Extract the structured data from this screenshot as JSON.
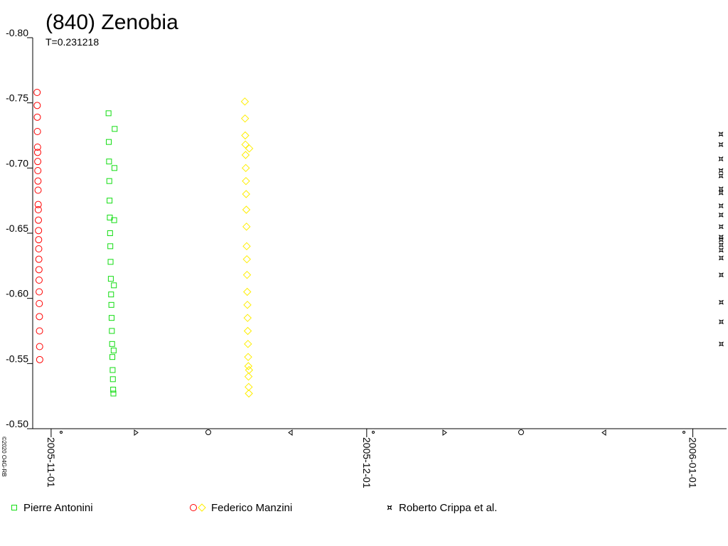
{
  "chart_data": {
    "type": "scatter",
    "title": "(840) Zenobia",
    "subtitle": "T=0.231218",
    "copyright": "©2020 O4G-RB",
    "xlim": [
      "2005-10-30 06:00",
      "2006-01-04 05:00"
    ],
    "xticks": [
      "2005-11-01",
      "2005-12-01",
      "2006-01-01"
    ],
    "ylim": [
      -0.5,
      -0.8
    ],
    "yticks": [
      {
        "value": -0.8,
        "label": "-0.80"
      },
      -0.75,
      {
        "value": -0.7,
        "label": "-0.70"
      },
      -0.65,
      {
        "value": -0.6,
        "label": "-0.60"
      },
      -0.55,
      {
        "value": -0.5,
        "label": "-0.50"
      }
    ],
    "series": [
      {
        "name": "Pierre Antonini",
        "color": "#11dd11",
        "marker": "square",
        "x": [
          "2005-11-06 11:00",
          "2005-11-06 11:35",
          "2005-11-06 12:10",
          "2005-11-06 12:45",
          "2005-11-06 13:20",
          "2005-11-06 13:55",
          "2005-11-06 14:30",
          "2005-11-06 15:05",
          "2005-11-06 15:40",
          "2005-11-06 16:15",
          "2005-11-06 16:50",
          "2005-11-06 17:25",
          "2005-11-06 18:00",
          "2005-11-06 18:35",
          "2005-11-06 19:10",
          "2005-11-06 19:45",
          "2005-11-06 20:20",
          "2005-11-06 20:55",
          "2005-11-06 21:30",
          "2005-11-06 22:05",
          "2005-11-06 22:40",
          "2005-11-06 23:15",
          "2005-11-06 23:50",
          "2005-11-07 00:25",
          "2005-11-07 01:00"
        ],
        "values": [
          -0.742,
          -0.72,
          -0.705,
          -0.69,
          -0.675,
          -0.662,
          -0.65,
          -0.64,
          -0.628,
          -0.615,
          -0.603,
          -0.595,
          -0.585,
          -0.575,
          -0.565,
          -0.555,
          -0.545,
          -0.538,
          -0.53,
          -0.527,
          -0.56,
          -0.61,
          -0.66,
          -0.7,
          -0.73
        ]
      },
      {
        "name": "Federico Manzini",
        "color": "#ff0000",
        "marker": "circle",
        "x": [
          "2005-10-30 16:00",
          "2005-10-30 16:15",
          "2005-10-30 16:30",
          "2005-10-30 16:45",
          "2005-10-30 17:00",
          "2005-10-30 17:15",
          "2005-10-30 17:30",
          "2005-10-30 17:45",
          "2005-10-30 18:00",
          "2005-10-30 18:15",
          "2005-10-30 18:30",
          "2005-10-30 18:45",
          "2005-10-30 19:00",
          "2005-10-30 19:15",
          "2005-10-30 19:30",
          "2005-10-30 19:45",
          "2005-10-30 20:00",
          "2005-10-30 20:15",
          "2005-10-30 20:30",
          "2005-10-30 20:45",
          "2005-10-30 21:00",
          "2005-10-30 21:15",
          "2005-10-30 21:30",
          "2005-10-30 21:45",
          "2005-10-30 22:00"
        ],
        "values": [
          -0.758,
          -0.748,
          -0.739,
          -0.728,
          -0.716,
          -0.712,
          -0.705,
          -0.698,
          -0.69,
          -0.683,
          -0.672,
          -0.668,
          -0.66,
          -0.652,
          -0.645,
          -0.638,
          -0.63,
          -0.622,
          -0.614,
          -0.605,
          -0.596,
          -0.586,
          -0.575,
          -0.563,
          -0.553
        ]
      },
      {
        "name": "Federico Manzini",
        "color": "#ffee00",
        "marker": "diamond",
        "x": [
          "2005-11-19 10:00",
          "2005-11-19 10:25",
          "2005-11-19 10:50",
          "2005-11-19 11:15",
          "2005-11-19 11:40",
          "2005-11-19 12:05",
          "2005-11-19 12:30",
          "2005-11-19 12:55",
          "2005-11-19 13:20",
          "2005-11-19 13:45",
          "2005-11-19 14:10",
          "2005-11-19 14:35",
          "2005-11-19 15:00",
          "2005-11-19 15:25",
          "2005-11-19 15:50",
          "2005-11-19 16:15",
          "2005-11-19 16:40",
          "2005-11-19 17:05",
          "2005-11-19 17:30",
          "2005-11-19 17:55",
          "2005-11-19 18:20",
          "2005-11-19 18:45",
          "2005-11-19 19:10",
          "2005-11-19 19:35",
          "2005-11-19 20:00"
        ],
        "values": [
          -0.751,
          -0.738,
          -0.725,
          -0.718,
          -0.71,
          -0.7,
          -0.69,
          -0.68,
          -0.668,
          -0.655,
          -0.64,
          -0.63,
          -0.618,
          -0.605,
          -0.595,
          -0.585,
          -0.575,
          -0.565,
          -0.555,
          -0.548,
          -0.54,
          -0.532,
          -0.527,
          -0.545,
          -0.715
        ]
      },
      {
        "name": "Roberto Crippa et al.",
        "color": "#000000",
        "marker": "star",
        "x": [
          "2006-01-03 16:00",
          "2006-01-03 16:03",
          "2006-01-03 16:06",
          "2006-01-03 16:09",
          "2006-01-03 16:12",
          "2006-01-03 16:15",
          "2006-01-03 16:18",
          "2006-01-03 16:21",
          "2006-01-03 16:24",
          "2006-01-03 16:27",
          "2006-01-03 16:30",
          "2006-01-03 16:33",
          "2006-01-03 16:36",
          "2006-01-03 16:39",
          "2006-01-03 16:42",
          "2006-01-03 16:45",
          "2006-01-03 16:48",
          "2006-01-03 16:51",
          "2006-01-03 16:54"
        ],
        "values": [
          -0.726,
          -0.718,
          -0.707,
          -0.698,
          -0.694,
          -0.684,
          -0.681,
          -0.671,
          -0.664,
          -0.655,
          -0.647,
          -0.645,
          -0.641,
          -0.637,
          -0.631,
          -0.618,
          -0.597,
          -0.582,
          -0.565
        ]
      }
    ]
  }
}
